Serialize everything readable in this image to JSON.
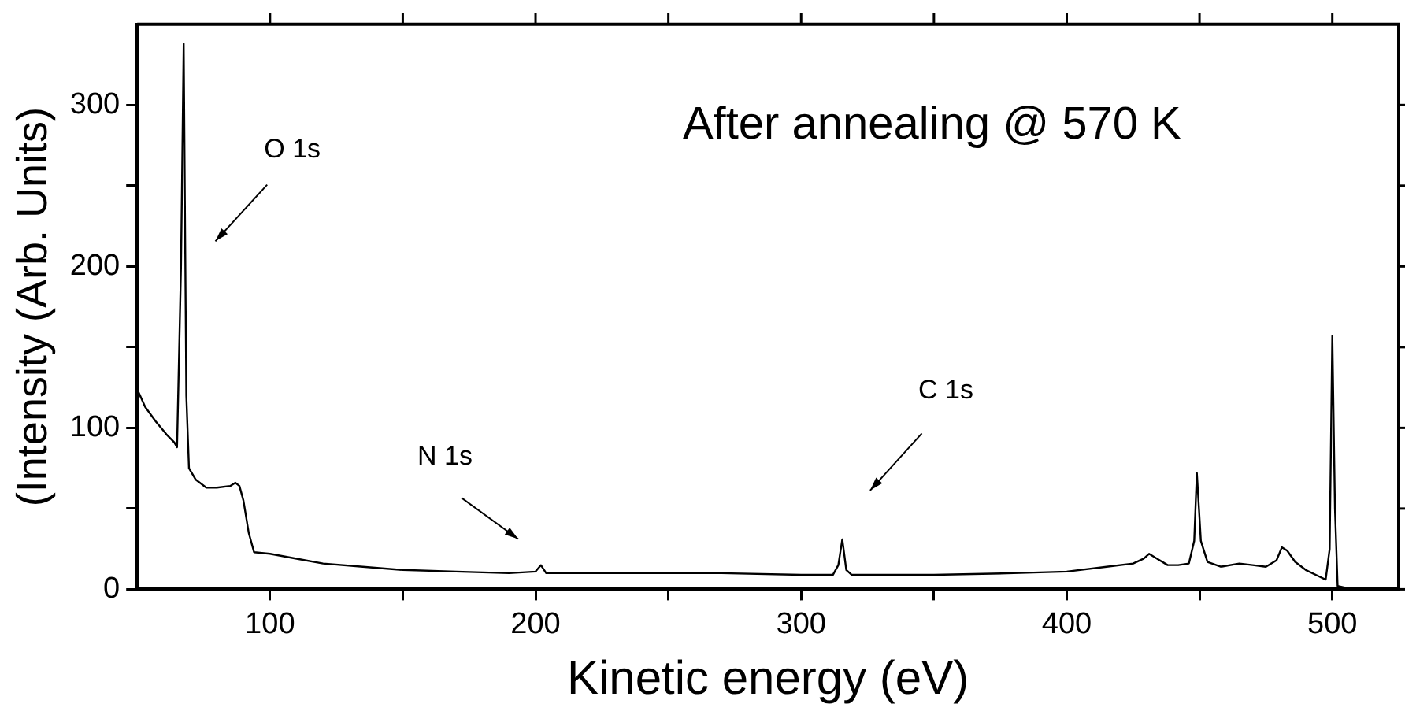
{
  "chart_data": {
    "type": "line",
    "title": "After annealing @ 570 K",
    "xlabel": "Kinetic energy (eV)",
    "ylabel": "(Intensity (Arb. Units)",
    "xlim": [
      50,
      525
    ],
    "ylim": [
      0,
      350
    ],
    "xticks": [
      100,
      {
        "value": 150,
        "label": null
      },
      200,
      {
        "value": 250,
        "label": null
      },
      300,
      {
        "value": 350,
        "label": null
      },
      400,
      {
        "value": 450,
        "label": null
      },
      500
    ],
    "yticks": [
      0,
      {
        "value": 50,
        "label": null
      },
      100,
      {
        "value": 150,
        "label": null
      },
      200,
      {
        "value": 250,
        "label": null
      },
      300
    ],
    "grid": false,
    "legend": false,
    "marker": "none",
    "line_style": "solid",
    "annotations": [
      "O 1s",
      "N 1s",
      "C 1s"
    ],
    "series": [
      {
        "color": "#000000",
        "x": [
          50,
          53,
          57,
          61,
          64,
          65,
          66.5,
          67.5,
          68.5,
          69.5,
          72,
          76,
          80,
          85,
          87,
          88.5,
          90,
          92,
          94,
          100,
          110,
          120,
          135,
          150,
          170,
          190,
          200,
          202,
          204,
          225,
          250,
          270,
          300,
          312,
          314,
          315.5,
          317,
          319,
          350,
          380,
          400,
          415,
          425,
          429,
          431,
          434,
          438,
          442,
          446,
          448,
          449,
          450.5,
          453,
          458,
          465,
          470,
          475,
          479,
          481,
          483,
          486,
          490,
          495,
          497.5,
          499,
          500,
          501,
          502,
          505,
          510,
          512
        ],
        "values": [
          124,
          113,
          104,
          96,
          91,
          88,
          200,
          338,
          120,
          75,
          68,
          63,
          63,
          64,
          66,
          64,
          55,
          35,
          23,
          22,
          19,
          16,
          14,
          12,
          11,
          10,
          11,
          15,
          10,
          10,
          10,
          10,
          9,
          9,
          15,
          31,
          12,
          9,
          9,
          10,
          11,
          14,
          16,
          19,
          22,
          19,
          15,
          15,
          16,
          30,
          72,
          30,
          17,
          14,
          16,
          15,
          14,
          18,
          26,
          24,
          17,
          12,
          8,
          6,
          25,
          157,
          50,
          2,
          1,
          1,
          0
        ]
      }
    ]
  }
}
